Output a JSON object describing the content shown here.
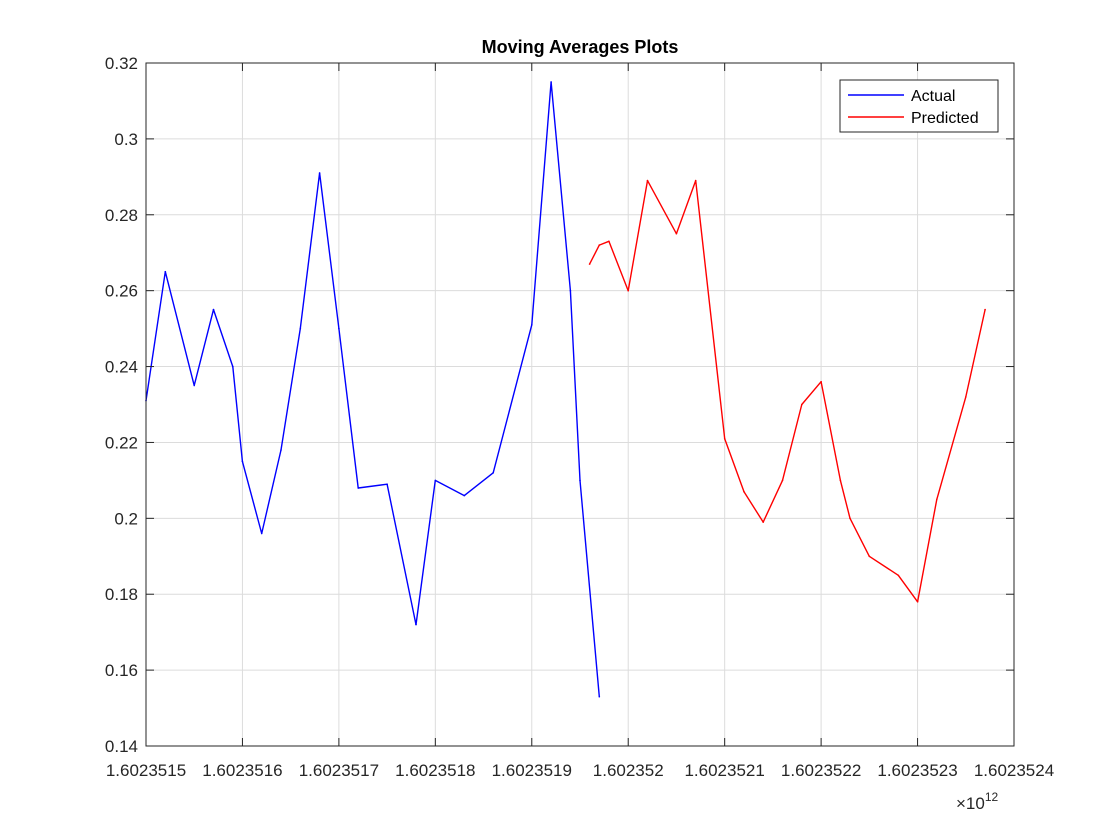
{
  "chart_data": {
    "type": "line",
    "title": "Moving Averages Plots",
    "xlabel": "",
    "ylabel": "",
    "x_exponent_label": "×10",
    "x_exponent_power": "12",
    "xlim": [
      1.6023515,
      1.6023524
    ],
    "ylim": [
      0.14,
      0.32
    ],
    "grid": true,
    "legend_position": "top-right",
    "x_ticks": [
      1.6023515,
      1.6023516,
      1.6023517,
      1.6023518,
      1.6023519,
      1.602352,
      1.6023521,
      1.6023522,
      1.6023523,
      1.6023524
    ],
    "x_tick_labels": [
      "1.6023515",
      "1.6023516",
      "1.6023517",
      "1.6023518",
      "1.6023519",
      "1.602352",
      "1.6023521",
      "1.6023522",
      "1.6023523",
      "1.6023524"
    ],
    "y_ticks": [
      0.14,
      0.16,
      0.18,
      0.2,
      0.22,
      0.24,
      0.26,
      0.28,
      0.3,
      0.32
    ],
    "y_tick_labels": [
      "0.14",
      "0.16",
      "0.18",
      "0.2",
      "0.22",
      "0.24",
      "0.26",
      "0.28",
      "0.3",
      "0.32"
    ],
    "series": [
      {
        "name": "Actual",
        "color": "#0000ff",
        "x": [
          1.6023515,
          1.60235152,
          1.60235155,
          1.60235157,
          1.60235159,
          1.6023516,
          1.60235162,
          1.60235164,
          1.60235166,
          1.60235168,
          1.6023517,
          1.60235172,
          1.60235175,
          1.60235178,
          1.6023518,
          1.60235183,
          1.60235186,
          1.6023519,
          1.60235192,
          1.60235194,
          1.60235195,
          1.60235197
        ],
        "y": [
          0.231,
          0.265,
          0.235,
          0.255,
          0.24,
          0.215,
          0.196,
          0.218,
          0.25,
          0.291,
          0.25,
          0.208,
          0.209,
          0.172,
          0.21,
          0.206,
          0.212,
          0.251,
          0.315,
          0.26,
          0.21,
          0.153
        ]
      },
      {
        "name": "Predicted",
        "color": "#ff0000",
        "x": [
          1.60235196,
          1.60235197,
          1.60235198,
          1.602352,
          1.60235202,
          1.60235205,
          1.60235207,
          1.6023521,
          1.60235212,
          1.60235214,
          1.60235216,
          1.60235218,
          1.6023522,
          1.60235222,
          1.60235223,
          1.60235225,
          1.60235228,
          1.6023523,
          1.60235232,
          1.60235235,
          1.60235237
        ],
        "y": [
          0.267,
          0.272,
          0.273,
          0.26,
          0.289,
          0.275,
          0.289,
          0.221,
          0.207,
          0.199,
          0.21,
          0.23,
          0.236,
          0.21,
          0.2,
          0.19,
          0.185,
          0.178,
          0.205,
          0.232,
          0.255
        ]
      }
    ]
  }
}
